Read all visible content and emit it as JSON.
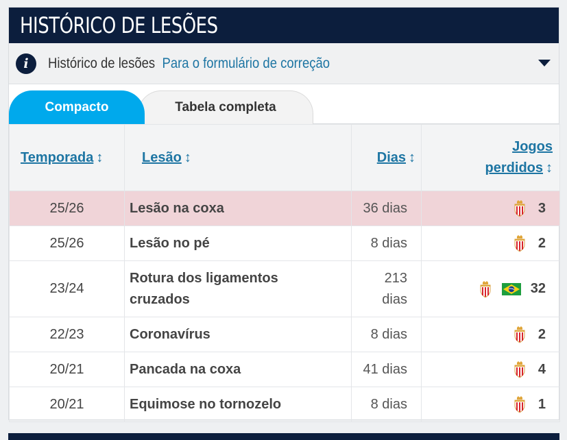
{
  "header": {
    "title": "HISTÓRICO DE LESÕES"
  },
  "infobar": {
    "icon": "info-icon",
    "label": "Histórico de lesões",
    "link": "Para o formulário de correção"
  },
  "tabs": [
    {
      "label": "Compacto",
      "active": true
    },
    {
      "label": "Tabela completa",
      "active": false
    }
  ],
  "table": {
    "headers": {
      "season": "Temporada",
      "injury": "Lesão",
      "days": "Dias",
      "games_line1": "Jogos",
      "games_line2": "perdidos",
      "sort_icon": "↕"
    },
    "rows": [
      {
        "season": "25/26",
        "injury": "Lesão na coxa",
        "days": "36 dias",
        "games": "3",
        "highlight": true
      },
      {
        "season": "25/26",
        "injury": "Lesão no pé",
        "days": "8 dias",
        "games": "2"
      },
      {
        "season": "23/24",
        "injury_line1": "Rotura dos ligamentos",
        "injury_line2": "cruzados",
        "days_line1": "213",
        "days_line2": "dias",
        "games": "32"
      },
      {
        "season": "22/23",
        "injury": "Coronavírus",
        "days": "8 dias",
        "games": "2"
      },
      {
        "season": "20/21",
        "injury": "Pancada na coxa",
        "days": "41 dias",
        "games": "4"
      },
      {
        "season": "20/21",
        "injury": "Equimose no tornozelo",
        "days": "8 dias",
        "games": "1"
      }
    ]
  },
  "colors": {
    "header_bg": "#0c1e3d",
    "accent_tab": "#00a9ec",
    "link": "#1d75a3",
    "highlight_row": "#f0d4d8"
  },
  "icons": {
    "club_crest": "club-crest-icon",
    "flag": "brazil-flag-icon"
  }
}
